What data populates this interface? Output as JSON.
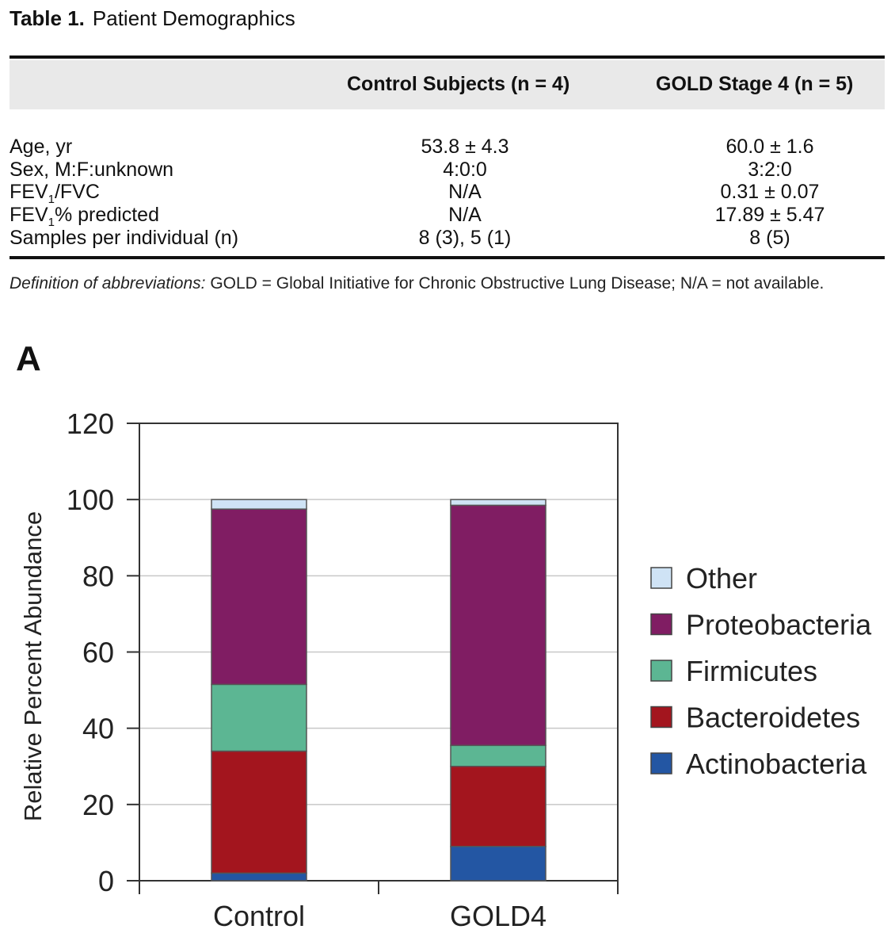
{
  "table": {
    "label": "Table 1.",
    "title": "Patient Demographics",
    "columns": [
      "Control Subjects (n = 4)",
      "GOLD Stage 4 (n = 5)"
    ],
    "rows": [
      {
        "label": "Age, yr",
        "control": "53.8 ± 4.3",
        "gold": "60.0 ± 1.6"
      },
      {
        "label": "Sex, M:F:unknown",
        "control": "4:0:0",
        "gold": "3:2:0"
      },
      {
        "label_pre": "FEV",
        "label_sub": "1",
        "label_post": "/FVC",
        "control": "N/A",
        "gold": "0.31 ± 0.07"
      },
      {
        "label_pre": "FEV",
        "label_sub": "1",
        "label_post": "% predicted",
        "control": "N/A",
        "gold": "17.89 ± 5.47"
      },
      {
        "label": "Samples per individual (n)",
        "control": "8 (3), 5 (1)",
        "gold": "8 (5)"
      }
    ],
    "footnote_italic": "Definition of abbreviations:",
    "footnote_text": " GOLD = Global Initiative for Chronic Obstructive Lung Disease; N/A = not available."
  },
  "panel_label": "A",
  "colors": {
    "Other": "#cfe3f5",
    "Proteobacteria": "#801d63",
    "Firmicutes": "#5cb693",
    "Bacteroidetes": "#a3151e",
    "Actinobacteria": "#2356a3"
  },
  "chart_data": {
    "type": "bar",
    "stacked": true,
    "title": "",
    "xlabel": "",
    "ylabel": "Relative Percent Abundance",
    "ylim": [
      0,
      120
    ],
    "yticks": [
      0,
      20,
      40,
      60,
      80,
      100,
      120
    ],
    "grid": true,
    "legend": "right",
    "categories": [
      "Control",
      "GOLD4"
    ],
    "series": [
      {
        "name": "Actinobacteria",
        "values": [
          2,
          9
        ]
      },
      {
        "name": "Bacteroidetes",
        "values": [
          32,
          21
        ]
      },
      {
        "name": "Firmicutes",
        "values": [
          17.5,
          5.5
        ]
      },
      {
        "name": "Proteobacteria",
        "values": [
          46,
          63
        ]
      },
      {
        "name": "Other",
        "values": [
          2.5,
          1.5
        ]
      }
    ],
    "legend_order": [
      "Other",
      "Proteobacteria",
      "Firmicutes",
      "Bacteroidetes",
      "Actinobacteria"
    ]
  }
}
